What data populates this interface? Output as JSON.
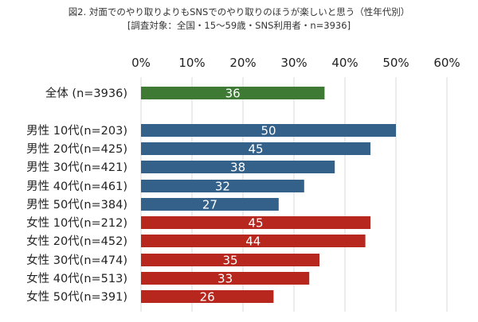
{
  "chart_data": {
    "type": "bar",
    "orientation": "horizontal",
    "title": "図2. 対面でのやり取りよりもSNSでのやり取りのほうが楽しいと思う（性年代別）",
    "subtitle": "[調査対象：全国・15〜59歳・SNS利用者・n=3936]",
    "xlabel": "",
    "ylabel": "",
    "xlim": [
      0,
      60
    ],
    "x_ticks": [
      "0%",
      "10%",
      "20%",
      "30%",
      "40%",
      "50%",
      "60%"
    ],
    "tick_values": [
      0,
      10,
      20,
      30,
      40,
      50,
      60
    ],
    "x_axis_position": "top",
    "grid": "vertical",
    "categories": [
      "全体 (n=3936)",
      "男性 10代(n=203)",
      "男性 20代(n=425)",
      "男性 30代(n=421)",
      "男性 40代(n=461)",
      "男性 50代(n=384)",
      "女性 10代(n=212)",
      "女性 20代(n=452)",
      "女性 30代(n=474)",
      "女性 40代(n=513)",
      "女性 50代(n=391)"
    ],
    "values": [
      36,
      50,
      45,
      38,
      32,
      27,
      45,
      44,
      35,
      33,
      26
    ],
    "groups": [
      "total",
      "male",
      "male",
      "male",
      "male",
      "male",
      "female",
      "female",
      "female",
      "female",
      "female"
    ],
    "colors": {
      "total": "#3f7a35",
      "male": "#34618a",
      "female": "#b8271e",
      "grid": "#d9d9d9"
    }
  }
}
